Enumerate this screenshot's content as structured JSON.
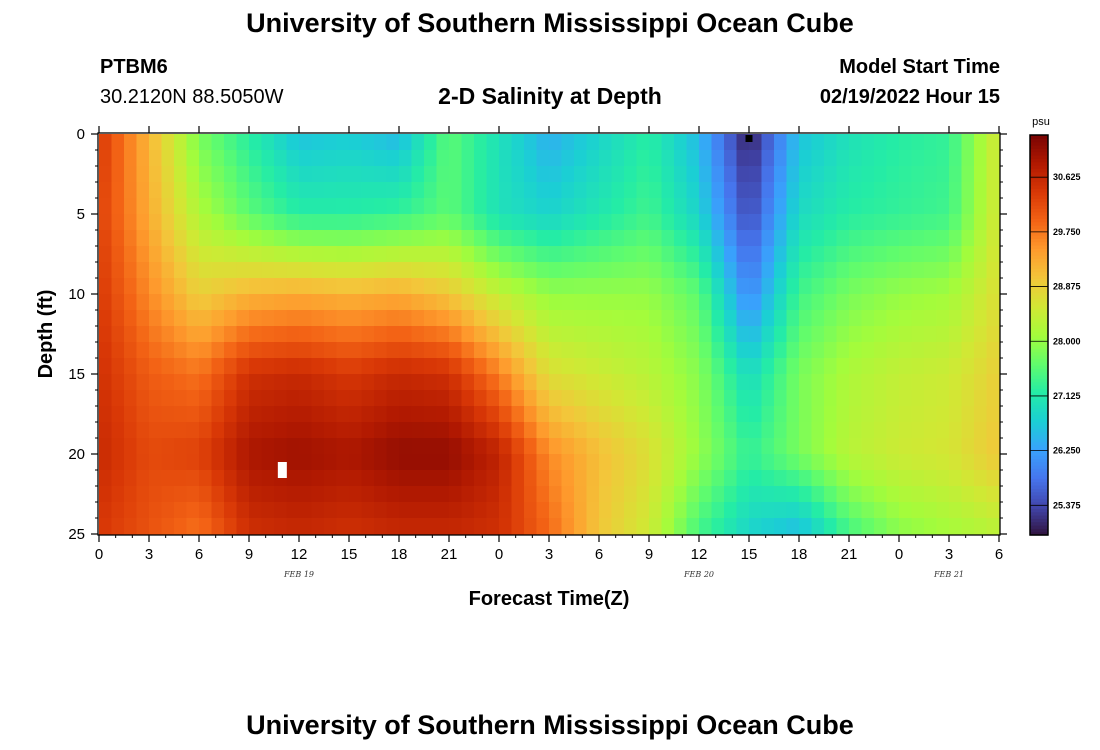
{
  "header": {
    "title": "University of Southern Mississippi Ocean Cube",
    "station": "PTBM6",
    "coords": "30.2120N  88.5050W",
    "model_start_label": "Model Start Time",
    "model_start_value": "02/19/2022 Hour 15"
  },
  "footer": {
    "title": "University of Southern Mississippi Ocean Cube"
  },
  "chart_data": {
    "type": "heatmap",
    "title": "2-D Salinity at Depth",
    "xlabel": "Forecast Time(Z)",
    "ylabel": "Depth (ft)",
    "unit_label": "psu",
    "x_range": [
      0,
      54
    ],
    "y_range": [
      0,
      25
    ],
    "x_tick_labels": [
      "0",
      "3",
      "6",
      "9",
      "12",
      "15",
      "18",
      "21",
      "0",
      "3",
      "6",
      "9",
      "12",
      "15",
      "18",
      "21",
      "0",
      "3",
      "6"
    ],
    "y_tick_labels": [
      "0",
      "5",
      "10",
      "15",
      "20",
      "25"
    ],
    "date_labels": [
      {
        "label": "FEB 19",
        "hour": 12
      },
      {
        "label": "FEB 20",
        "hour": 36
      },
      {
        "label": "FEB 21",
        "hour": 51
      }
    ],
    "colorbar": {
      "min": 24.9,
      "max": 31.3,
      "tick_values": [
        30.625,
        29.75,
        28.875,
        28.0,
        27.125,
        26.25,
        25.375
      ],
      "tick_labels": [
        "30.625",
        "29.750",
        "28.875",
        "28.000",
        "27.125",
        "26.250",
        "25.375"
      ],
      "colors": [
        "#30123b",
        "#4145ab",
        "#4675ed",
        "#39a2fc",
        "#1bcfd4",
        "#24eca6",
        "#61fc6c",
        "#a4fc3b",
        "#d1e834",
        "#f3c63a",
        "#fe9b2d",
        "#f36315",
        "#d93806",
        "#b11901",
        "#7a0403"
      ]
    },
    "markers": [
      {
        "name": "model-start-marker",
        "hour": 39,
        "depth": 0.2,
        "color": "#000000"
      },
      {
        "name": "white-marker",
        "hour": 11,
        "depth": 21,
        "color": "#ffffff"
      }
    ],
    "salinity_field": {
      "depths": [
        0,
        5,
        10,
        15,
        20,
        25
      ],
      "hours": [
        0,
        3,
        6,
        9,
        12,
        15,
        18,
        21,
        24,
        27,
        30,
        33,
        36,
        39,
        42,
        45,
        48,
        51,
        54
      ],
      "values": [
        [
          30.4,
          29.2,
          27.8,
          27.2,
          26.6,
          26.7,
          26.5,
          27.6,
          27.0,
          26.4,
          26.8,
          27.2,
          26.5,
          25.0,
          26.6,
          27.0,
          27.2,
          27.3,
          28.6
        ],
        [
          30.3,
          29.3,
          28.2,
          27.6,
          27.2,
          27.2,
          27.3,
          27.6,
          27.0,
          26.8,
          27.1,
          27.4,
          26.8,
          25.4,
          26.9,
          27.2,
          27.3,
          27.4,
          28.6
        ],
        [
          30.4,
          29.6,
          28.9,
          29.2,
          29.3,
          29.2,
          29.3,
          29.0,
          28.4,
          28.0,
          28.0,
          28.0,
          27.6,
          26.0,
          27.4,
          27.8,
          28.0,
          28.1,
          28.7
        ],
        [
          30.5,
          30.0,
          29.8,
          30.5,
          30.6,
          30.4,
          30.6,
          30.5,
          29.7,
          28.7,
          28.5,
          28.3,
          27.9,
          26.9,
          27.8,
          28.2,
          28.4,
          28.5,
          28.9
        ],
        [
          30.6,
          30.2,
          30.3,
          30.9,
          31.0,
          30.9,
          31.1,
          31.1,
          30.7,
          29.6,
          29.1,
          28.7,
          28.0,
          27.3,
          27.8,
          28.3,
          28.5,
          28.6,
          29.0
        ],
        [
          30.4,
          30.1,
          29.8,
          30.5,
          30.6,
          30.5,
          30.6,
          30.6,
          30.5,
          29.9,
          29.0,
          28.5,
          27.4,
          26.8,
          26.5,
          27.4,
          27.9,
          28.1,
          28.3
        ]
      ]
    }
  }
}
